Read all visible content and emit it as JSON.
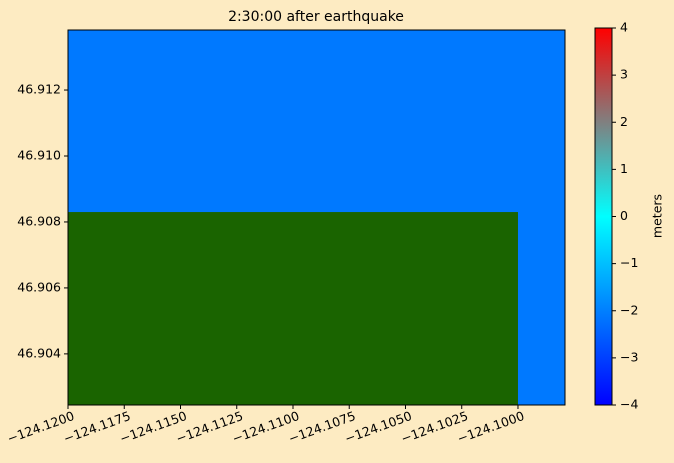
{
  "chart_data": {
    "type": "map",
    "title": "2:30:00 after earthquake",
    "xlim": [
      -124.12,
      -124.09791
    ],
    "ylim": [
      46.90245,
      46.91382
    ],
    "xticks": [
      {
        "value": -124.12,
        "label": "−124.1200"
      },
      {
        "value": -124.1175,
        "label": "−124.1175"
      },
      {
        "value": -124.115,
        "label": "−124.1150"
      },
      {
        "value": -124.1125,
        "label": "−124.1125"
      },
      {
        "value": -124.11,
        "label": "−124.1100"
      },
      {
        "value": -124.1075,
        "label": "−124.1075"
      },
      {
        "value": -124.105,
        "label": "−124.1050"
      },
      {
        "value": -124.1025,
        "label": "−124.1025"
      },
      {
        "value": -124.1,
        "label": "−124.1000"
      }
    ],
    "yticks": [
      46.904,
      46.906,
      46.908,
      {
        "value": 46.91,
        "label": "46.910"
      },
      46.912
    ],
    "water_value": -2.1,
    "land": {
      "color": "#1a6400",
      "x": [
        -124.12,
        -124.1
      ],
      "y": [
        46.90245,
        46.9083
      ]
    },
    "colorbar": {
      "label": "meters",
      "lim": [
        -4,
        4
      ],
      "ticks": [
        {
          "value": -4,
          "label": "−4"
        },
        {
          "value": -3,
          "label": "−3"
        },
        {
          "value": -2,
          "label": "−2"
        },
        {
          "value": -1,
          "label": "−1"
        },
        0,
        1,
        2,
        3,
        4
      ],
      "colorscale": [
        {
          "value": -4,
          "color": "#0000ff"
        },
        {
          "value": 0,
          "color": "#00ffff"
        },
        {
          "value": 2,
          "color": "#808080"
        },
        {
          "value": 4,
          "color": "#ff0000"
        }
      ]
    }
  }
}
